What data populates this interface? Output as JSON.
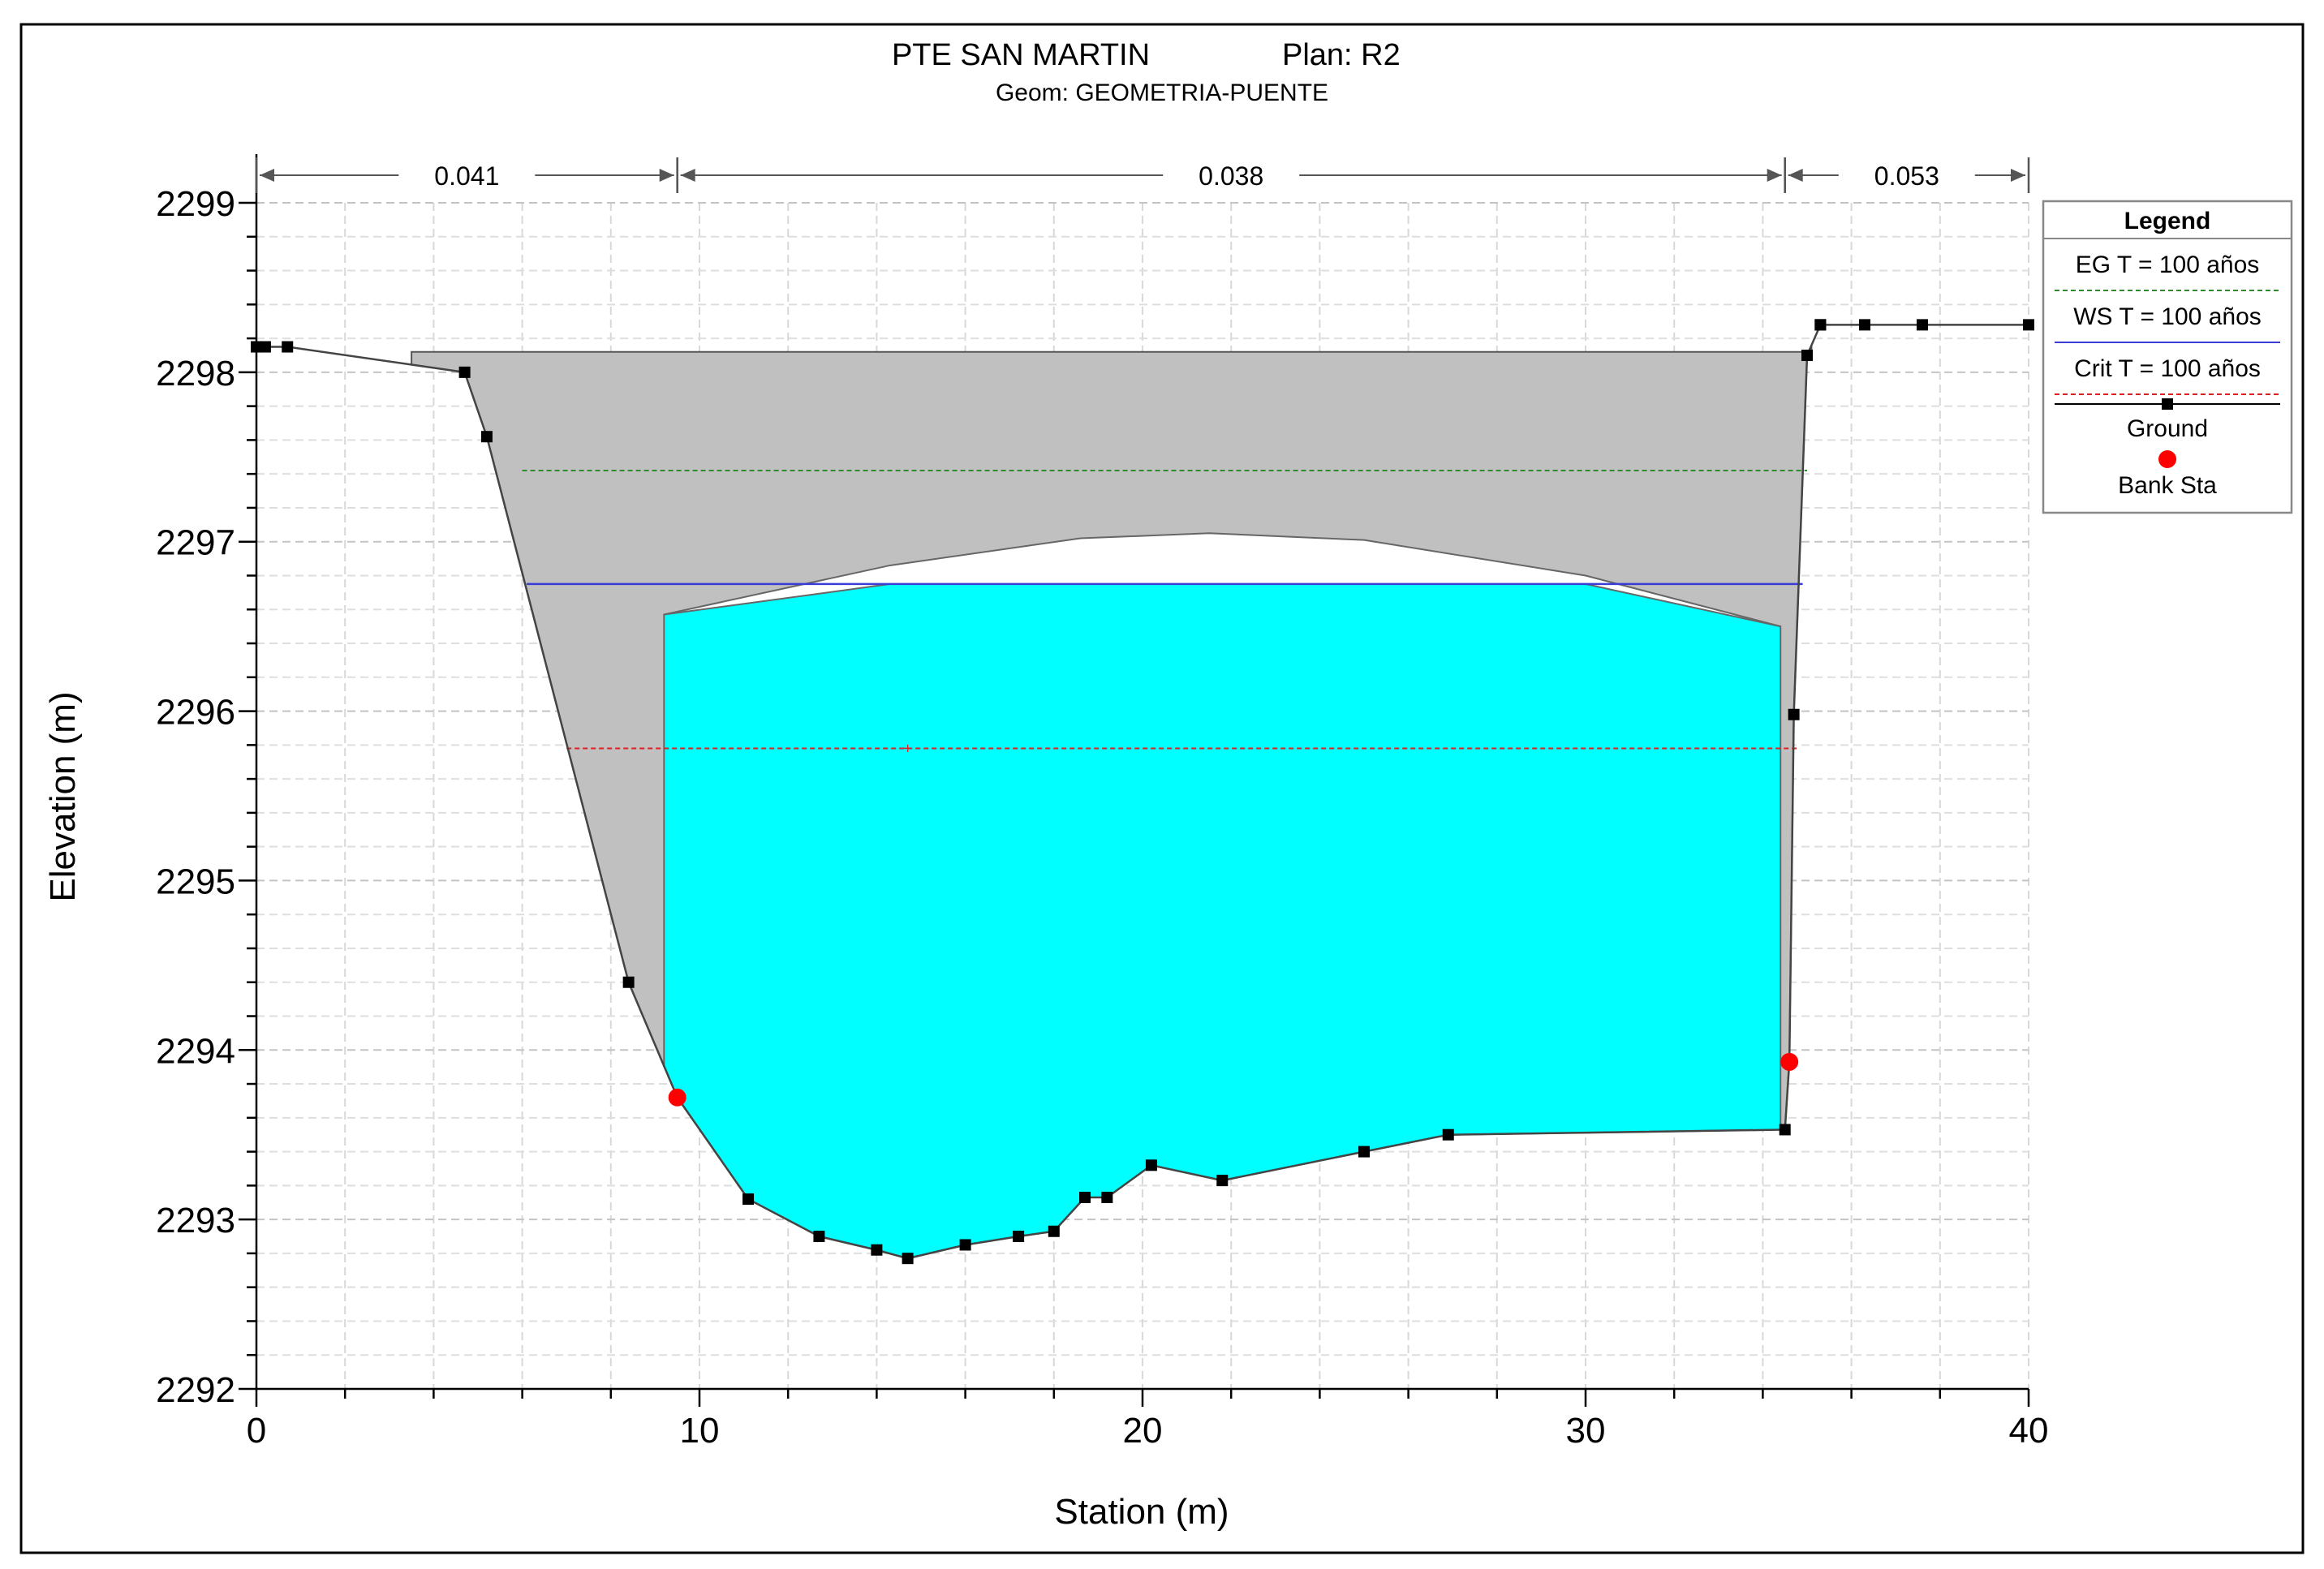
{
  "chart_data": {
    "type": "area",
    "title": "PTE SAN MARTIN",
    "plan": "Plan: R2",
    "subtitle": "Geom: GEOMETRIA-PUENTE",
    "xlabel": "Station (m)",
    "ylabel": "Elevation (m)",
    "xlim": [
      0,
      40
    ],
    "ylim": [
      2292,
      2299
    ],
    "x_ticks": [
      "0",
      "10",
      "20",
      "30",
      "40"
    ],
    "y_ticks": [
      "2292",
      "2293",
      "2294",
      "2295",
      "2296",
      "2297",
      "2298",
      "2299"
    ],
    "grid": true,
    "legend_position": "top-right",
    "manning_n": [
      {
        "label": "0.041",
        "from": 0,
        "to": 9.5
      },
      {
        "label": "0.038",
        "from": 9.5,
        "to": 34.5
      },
      {
        "label": "0.053",
        "from": 34.5,
        "to": 40
      }
    ],
    "legend": {
      "title": "Legend",
      "entries": [
        {
          "label": "EG T = 100 años",
          "color": "#2e8b2e",
          "kind": "dashed-line"
        },
        {
          "label": "WS T = 100 años",
          "color": "#3b3bd6",
          "kind": "line"
        },
        {
          "label": "Crit T = 100 años",
          "color": "#e02020",
          "kind": "dashed-line"
        },
        {
          "label": "Ground",
          "color": "#000000",
          "kind": "line-marker"
        },
        {
          "label": "Bank Sta",
          "color": "#ff0000",
          "kind": "dot"
        }
      ]
    },
    "series": [
      {
        "name": "Ground",
        "color": "#000000",
        "x": [
          0,
          0.2,
          0.7,
          4.7,
          5.2,
          8.4,
          9.5,
          11.1,
          12.7,
          14.0,
          14.7,
          16.0,
          17.2,
          18.0,
          18.7,
          19.2,
          20.2,
          21.8,
          25.0,
          26.9,
          34.5,
          34.6,
          34.7,
          35.0,
          35.3,
          35.3,
          36.3,
          37.6,
          40.0
        ],
        "y": [
          2298.15,
          2298.15,
          2298.15,
          2298.0,
          2297.62,
          2294.4,
          2293.72,
          2293.12,
          2292.9,
          2292.82,
          2292.77,
          2292.85,
          2292.9,
          2292.93,
          2293.13,
          2293.13,
          2293.32,
          2293.23,
          2293.4,
          2293.5,
          2293.53,
          2293.93,
          2295.98,
          2298.1,
          2298.28,
          2298.28,
          2298.28,
          2298.28,
          2298.28
        ]
      },
      {
        "name": "EG T = 100 años",
        "color": "#2e8b2e",
        "elevation": 2297.42
      },
      {
        "name": "WS T = 100 años",
        "color": "#3b3bd6",
        "elevation": 2296.75
      },
      {
        "name": "Crit T = 100 años",
        "color": "#e02020",
        "elevation": 2295.78
      }
    ],
    "bank_stations": [
      {
        "x": 9.5,
        "y": 2293.72
      },
      {
        "x": 34.6,
        "y": 2293.93
      }
    ],
    "bridge_deck": {
      "color": "#c0c0c0",
      "top": [
        [
          3.5,
          2298.12
        ],
        [
          35.1,
          2298.12
        ]
      ],
      "low_chord": [
        [
          9.2,
          2296.57
        ],
        [
          14.3,
          2296.86
        ],
        [
          18.6,
          2297.02
        ],
        [
          21.5,
          2297.05
        ],
        [
          25.0,
          2297.01
        ],
        [
          30.0,
          2296.8
        ],
        [
          34.4,
          2296.5
        ]
      ]
    },
    "water_fill_color": "#00ffff",
    "ground_fill_color": "#c0c0c0"
  }
}
